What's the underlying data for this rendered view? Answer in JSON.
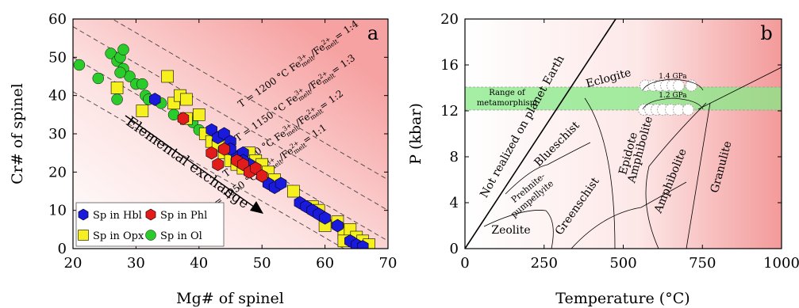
{
  "panels": [
    {
      "letter": "a",
      "xlabel": "Mg# of spinel",
      "ylabel": "Cr# of spinel",
      "xlim": [
        20,
        70
      ],
      "ylim": [
        0,
        60
      ],
      "xticks": [
        20,
        30,
        40,
        50,
        60,
        70
      ],
      "yticks": [
        0,
        10,
        20,
        30,
        40,
        50,
        60
      ],
      "arrow_text": "Elemental exchange",
      "isotherms": [
        {
          "T": "T = 1200 °C",
          "ratio": "= 1:4",
          "x1": 20,
          "y1": 66,
          "x2": 70,
          "y2": 18
        },
        {
          "T": "T = 1150 °C",
          "ratio": "= 1:3",
          "x1": 20,
          "y1": 58,
          "x2": 70,
          "y2": 10
        },
        {
          "T": "T = 1100 °C",
          "ratio": "= 1:2",
          "x1": 20,
          "y1": 50,
          "x2": 70,
          "y2": 2
        },
        {
          "T": "T = 1050 °C",
          "ratio": "= 1:1",
          "x1": 20,
          "y1": 41,
          "x2": 63,
          "y2": 0
        }
      ],
      "fe_label": {
        "base": "Fe",
        "sup1": "3+",
        "sub": "melt",
        "slash": "/",
        "sup2": "2+"
      },
      "legend": [
        "Sp in Hbl",
        "Sp in Phl",
        "Sp in Opx",
        "Sp in Ol"
      ]
    },
    {
      "letter": "b",
      "xlabel": "Temperature (°C)",
      "ylabel": "P (kbar)",
      "xlim": [
        0,
        1000
      ],
      "ylim": [
        0,
        20
      ],
      "xticks": [
        0,
        250,
        500,
        750,
        1000
      ],
      "yticks": [
        0,
        4,
        8,
        12,
        16,
        20
      ],
      "band_label": [
        "Range of",
        "metamorphism"
      ],
      "pressure_labels": [
        "1.4 GPa",
        "1.2 GPa"
      ],
      "not_realized": "Not realized on planet Earth",
      "facies": {
        "eclogite": "Eclogite",
        "blueschist": "Blueschist",
        "greenschist": "Greenschist",
        "prehnite": [
          "Prehnite-",
          "pumpellyite"
        ],
        "zeolite": "Zeolite",
        "epidote": [
          "Epidote",
          "Amphibolite"
        ],
        "amphibolite": "Amphibolite",
        "granulite": "Granulite"
      }
    }
  ],
  "chart_data": [
    {
      "type": "scatter",
      "xlabel": "Mg# of spinel",
      "ylabel": "Cr# of spinel",
      "xlim": [
        20,
        70
      ],
      "ylim": [
        0,
        60
      ],
      "series": [
        {
          "name": "Sp in Hbl",
          "marker": "hexagon",
          "color": "#1a1adc",
          "points": [
            [
              33,
              39
            ],
            [
              42,
              31
            ],
            [
              43,
              29
            ],
            [
              44,
              30
            ],
            [
              45,
              28
            ],
            [
              46,
              24
            ],
            [
              47,
              25
            ],
            [
              48,
              22
            ],
            [
              49,
              21
            ],
            [
              50,
              19
            ],
            [
              51,
              17
            ],
            [
              52,
              16
            ],
            [
              53,
              17
            ],
            [
              56,
              12
            ],
            [
              57,
              11
            ],
            [
              58,
              10
            ],
            [
              59,
              9
            ],
            [
              60,
              8
            ],
            [
              62,
              6
            ],
            [
              64,
              2
            ],
            [
              65,
              1
            ],
            [
              66,
              0.5
            ],
            [
              45,
              26
            ],
            [
              47,
              23
            ]
          ]
        },
        {
          "name": "Sp in Phl",
          "marker": "hexagon",
          "color": "#e21b1b",
          "points": [
            [
              37.5,
              34
            ],
            [
              42,
              25
            ],
            [
              43,
              22
            ],
            [
              44,
              26
            ],
            [
              46,
              23
            ],
            [
              47,
              22
            ],
            [
              48,
              20
            ],
            [
              49,
              21
            ],
            [
              50,
              19
            ]
          ]
        },
        {
          "name": "Sp in Opx",
          "marker": "square",
          "color": "#f5f01e",
          "points": [
            [
              27,
              42
            ],
            [
              31,
              36
            ],
            [
              35,
              45
            ],
            [
              36,
              38
            ],
            [
              37,
              40
            ],
            [
              38,
              39
            ],
            [
              38,
              34
            ],
            [
              40,
              35
            ],
            [
              41,
              30
            ],
            [
              42,
              28
            ],
            [
              43,
              27
            ],
            [
              44,
              25
            ],
            [
              45,
              23
            ],
            [
              46,
              22
            ],
            [
              47,
              21
            ],
            [
              48,
              25
            ],
            [
              49,
              23
            ],
            [
              50,
              22
            ],
            [
              51,
              20
            ],
            [
              52,
              18
            ],
            [
              55,
              15
            ],
            [
              58,
              11
            ],
            [
              59,
              10
            ],
            [
              60,
              6
            ],
            [
              62,
              7
            ],
            [
              63,
              4
            ],
            [
              64,
              5
            ],
            [
              65,
              3
            ],
            [
              66,
              2
            ],
            [
              67,
              1
            ],
            [
              63,
              2
            ]
          ]
        },
        {
          "name": "Sp in Ol",
          "marker": "circle",
          "color": "#2ccb2c",
          "points": [
            [
              21,
              48
            ],
            [
              24,
              44.5
            ],
            [
              26,
              51
            ],
            [
              27,
              49
            ],
            [
              27.5,
              50
            ],
            [
              28,
              47
            ],
            [
              28,
              52
            ],
            [
              29,
              45
            ],
            [
              30,
              43
            ],
            [
              31,
              43
            ],
            [
              31.5,
              40
            ],
            [
              32,
              39
            ],
            [
              34,
              38
            ],
            [
              36,
              35
            ],
            [
              38,
              34
            ],
            [
              39,
              33
            ],
            [
              40,
              31
            ],
            [
              42,
              30
            ],
            [
              43,
              27
            ],
            [
              44,
              26
            ],
            [
              45,
              25
            ],
            [
              46,
              24
            ],
            [
              48,
              23
            ],
            [
              50,
              21
            ],
            [
              27,
              39
            ],
            [
              27.5,
              46
            ]
          ]
        }
      ]
    },
    {
      "type": "diagram",
      "xlabel": "Temperature (°C)",
      "ylabel": "P (kbar)",
      "xlim": [
        0,
        1000
      ],
      "ylim": [
        0,
        20
      ],
      "band": {
        "label": "Range of metamorphism",
        "pmin": 12,
        "pmax": 14
      },
      "pressure_points": [
        {
          "label": "1.4 GPa",
          "T": [
            570,
            595,
            615,
            635,
            655,
            675,
            715
          ],
          "P": 14.2
        },
        {
          "label": "1.2 GPa",
          "T": [
            565,
            585,
            605,
            625,
            650,
            675,
            705
          ],
          "P": 12.1
        }
      ]
    }
  ]
}
